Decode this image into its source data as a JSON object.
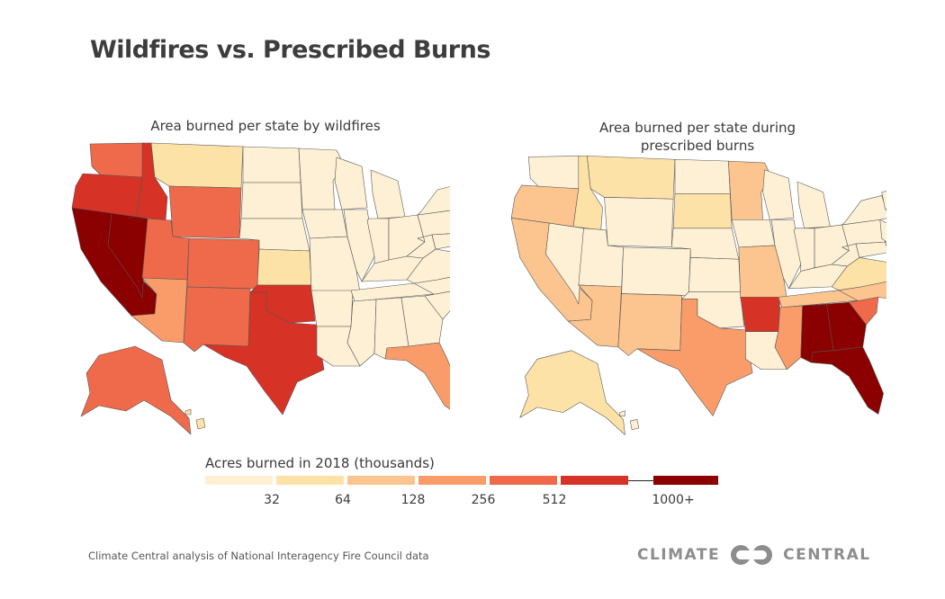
{
  "title": "Wildfires vs. Prescribed Burns",
  "map_titles": {
    "wildfires": "Area burned per state by wildfires",
    "prescribed_line1": "Area burned per state during",
    "prescribed_line2": "prescribed burns"
  },
  "legend": {
    "title": "Acres burned in 2018 (thousands)",
    "ticks": [
      "32",
      "64",
      "128",
      "256",
      "512",
      "1000+"
    ],
    "colors": [
      "#fdf0d5",
      "#fde2a8",
      "#fcc48e",
      "#fa9c6a",
      "#ee6a4b",
      "#d73226",
      "#8b0000"
    ]
  },
  "source": "Climate Central analysis of National Interagency Fire Council data",
  "brand": {
    "left": "CLIMATE",
    "right": "CENTRAL"
  },
  "chart_data": [
    {
      "type": "choropleth",
      "title": "Area burned per state by wildfires",
      "unit": "thousand acres burned in 2018",
      "bin_labels": [
        "<32",
        "32-64",
        "64-128",
        "128-256",
        "256-512",
        "512-1000",
        "1000+"
      ],
      "state_bins": {
        "CA": 6,
        "NV": 6,
        "OR": 5,
        "ID": 5,
        "TX": 5,
        "OK": 5,
        "WA": 4,
        "UT": 4,
        "CO": 4,
        "AK": 4,
        "NM": 4,
        "WY": 4,
        "AZ": 3,
        "FL": 3,
        "MT": 1,
        "KS": 1,
        "HI": 1
      },
      "default_bin": 0
    },
    {
      "type": "choropleth",
      "title": "Area burned per state during prescribed burns",
      "unit": "thousand acres burned in 2018",
      "bin_labels": [
        "<32",
        "32-64",
        "64-128",
        "128-256",
        "256-512",
        "512-1000",
        "1000+"
      ],
      "state_bins": {
        "AL": 6,
        "GA": 6,
        "FL": 6,
        "AR": 5,
        "SC": 4,
        "TX": 3,
        "MS": 3,
        "OR": 2,
        "CA": 2,
        "AZ": 2,
        "NM": 2,
        "MO": 2,
        "MN": 2,
        "NC": 2,
        "TN": 2,
        "MT": 1,
        "ID": 1,
        "SD": 1,
        "AK": 1,
        "VA": 1
      },
      "default_bin": 0
    }
  ]
}
